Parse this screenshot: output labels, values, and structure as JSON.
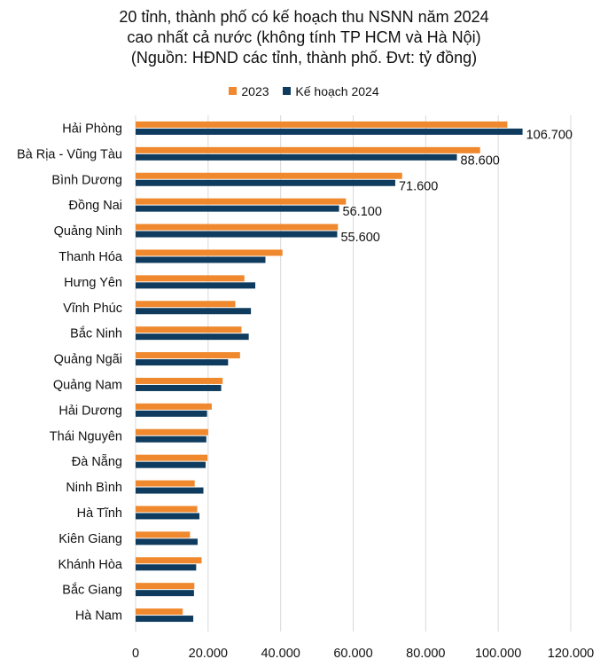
{
  "title_lines": [
    "20 tỉnh, thành phố có kế hoạch thu NSNN năm 2024",
    "cao nhất cả nước (không tính TP HCM và Hà Nội)",
    "(Nguồn: HĐND các tỉnh, thành phố. Đvt: tỷ đồng)"
  ],
  "legend": [
    {
      "name": "2023",
      "color": "#F0882E"
    },
    {
      "name": "Kế hoạch 2024",
      "color": "#0E3B5E"
    }
  ],
  "chart_data": {
    "type": "bar",
    "orientation": "horizontal",
    "categories": [
      "Hải Phòng",
      "Bà Rịa - Vũng Tàu",
      "Bình Dương",
      "Đồng Nai",
      "Quảng Ninh",
      "Thanh Hóa",
      "Hưng Yên",
      "Vĩnh Phúc",
      "Bắc Ninh",
      "Quảng Ngãi",
      "Quảng Nam",
      "Hải Dương",
      "Thái Nguyên",
      "Đà Nẵng",
      "Ninh Bình",
      "Hà Tĩnh",
      "Kiên Giang",
      "Khánh Hòa",
      "Bắc Giang",
      "Hà Nam"
    ],
    "series": [
      {
        "name": "2023",
        "color": "#F0882E",
        "values": [
          102500,
          95000,
          73500,
          58000,
          55800,
          40500,
          30000,
          27500,
          29200,
          28800,
          24000,
          21000,
          20000,
          19800,
          16300,
          17000,
          15000,
          18200,
          16200,
          13000
        ]
      },
      {
        "name": "Kế hoạch 2024",
        "color": "#0E3B5E",
        "values": [
          106700,
          88600,
          71600,
          56100,
          55600,
          35800,
          33000,
          31800,
          31200,
          25500,
          23600,
          19700,
          19500,
          19300,
          18700,
          17600,
          17100,
          16700,
          16100,
          15900
        ]
      }
    ],
    "data_labels": [
      "106.700",
      "88.600",
      "71.600",
      "56.100",
      "55.600"
    ],
    "xlim": [
      0,
      120000
    ],
    "x_ticks": [
      0,
      20000,
      40000,
      60000,
      80000,
      100000,
      120000
    ],
    "x_tick_labels": [
      "0",
      "20.000",
      "40.000",
      "60.000",
      "80.000",
      "100.000",
      "120.000"
    ],
    "grid": true,
    "legend_position": "top"
  }
}
